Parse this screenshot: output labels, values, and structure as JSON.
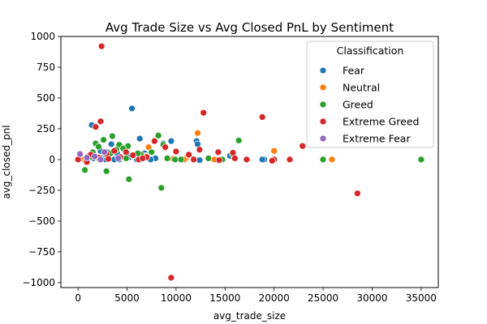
{
  "chart_data": {
    "type": "scatter",
    "title": "Avg Trade Size vs Avg Closed PnL by Sentiment",
    "xlabel": "avg_trade_size",
    "ylabel": "avg_closed_pnl",
    "xlim": [
      -1750,
      36750
    ],
    "ylim": [
      -1040,
      1000
    ],
    "xticks": [
      0,
      5000,
      10000,
      15000,
      20000,
      25000,
      30000,
      35000
    ],
    "xtick_labels": [
      "0",
      "5000",
      "10000",
      "15000",
      "20000",
      "25000",
      "30000",
      "35000"
    ],
    "yticks": [
      -1000,
      -750,
      -500,
      -250,
      0,
      250,
      500,
      750,
      1000
    ],
    "ytick_labels": [
      "−1000",
      "−750",
      "−500",
      "−250",
      "0",
      "250",
      "500",
      "750",
      "1000"
    ],
    "grid": false,
    "legend": {
      "title": "Classification",
      "placement": "top-right"
    },
    "series": [
      {
        "name": "Fear",
        "color": "#1f77b4",
        "points": [
          [
            1400,
            280
          ],
          [
            5500,
            415
          ],
          [
            9500,
            150
          ],
          [
            12100,
            150
          ],
          [
            12200,
            125
          ],
          [
            6300,
            170
          ],
          [
            3400,
            125
          ],
          [
            4700,
            80
          ],
          [
            3000,
            60
          ],
          [
            2600,
            20
          ],
          [
            2800,
            0
          ],
          [
            2300,
            70
          ],
          [
            1100,
            30
          ],
          [
            4200,
            0
          ],
          [
            8700,
            130
          ],
          [
            7900,
            10
          ],
          [
            19000,
            0
          ],
          [
            18800,
            0
          ],
          [
            15500,
            30
          ],
          [
            14800,
            0
          ],
          [
            10500,
            5
          ],
          [
            12400,
            -5
          ],
          [
            6800,
            50
          ],
          [
            7400,
            0
          ],
          [
            4000,
            50
          ],
          [
            5300,
            20
          ],
          [
            1600,
            10
          ],
          [
            3700,
            0
          ],
          [
            9800,
            0
          ],
          [
            6000,
            0
          ]
        ]
      },
      {
        "name": "Neutral",
        "color": "#ff7f0e",
        "points": [
          [
            12200,
            215
          ],
          [
            25900,
            0
          ],
          [
            20000,
            70
          ],
          [
            7200,
            100
          ],
          [
            11000,
            10
          ],
          [
            600,
            0
          ],
          [
            900,
            20
          ],
          [
            2000,
            10
          ],
          [
            4500,
            100
          ],
          [
            10800,
            0
          ],
          [
            9700,
            5
          ],
          [
            1500,
            50
          ],
          [
            6900,
            30
          ],
          [
            800,
            -10
          ],
          [
            13900,
            0
          ]
        ]
      },
      {
        "name": "Greed",
        "color": "#2ca02c",
        "points": [
          [
            35000,
            0
          ],
          [
            25000,
            0
          ],
          [
            16400,
            155
          ],
          [
            5200,
            -160
          ],
          [
            8500,
            -230
          ],
          [
            2900,
            -95
          ],
          [
            700,
            -85
          ],
          [
            3500,
            190
          ],
          [
            2600,
            160
          ],
          [
            1800,
            130
          ],
          [
            2100,
            105
          ],
          [
            4200,
            120
          ],
          [
            5100,
            110
          ],
          [
            8200,
            195
          ],
          [
            8700,
            120
          ],
          [
            1500,
            60
          ],
          [
            3300,
            50
          ],
          [
            4600,
            90
          ],
          [
            6400,
            40
          ],
          [
            7000,
            25
          ],
          [
            9100,
            10
          ],
          [
            10500,
            0
          ],
          [
            11800,
            5
          ],
          [
            13300,
            10
          ],
          [
            14700,
            0
          ],
          [
            15800,
            40
          ],
          [
            2200,
            0
          ],
          [
            3900,
            80
          ],
          [
            5600,
            30
          ],
          [
            7500,
            60
          ],
          [
            1200,
            20
          ],
          [
            2800,
            40
          ],
          [
            4900,
            10
          ],
          [
            6100,
            50
          ],
          [
            9900,
            0
          ]
        ]
      },
      {
        "name": "Extreme Greed",
        "color": "#d62728",
        "points": [
          [
            2400,
            920
          ],
          [
            9500,
            -960
          ],
          [
            2300,
            310
          ],
          [
            1800,
            265
          ],
          [
            12800,
            380
          ],
          [
            18800,
            345
          ],
          [
            28500,
            -275
          ],
          [
            22900,
            110
          ],
          [
            21600,
            0
          ],
          [
            20000,
            0
          ],
          [
            19800,
            -10
          ],
          [
            17200,
            0
          ],
          [
            15800,
            55
          ],
          [
            14300,
            60
          ],
          [
            12400,
            80
          ],
          [
            11300,
            40
          ],
          [
            10000,
            65
          ],
          [
            8900,
            100
          ],
          [
            7800,
            150
          ],
          [
            7000,
            20
          ],
          [
            6200,
            0
          ],
          [
            5600,
            35
          ],
          [
            4900,
            60
          ],
          [
            4300,
            20
          ],
          [
            3700,
            70
          ],
          [
            2900,
            45
          ],
          [
            2100,
            15
          ],
          [
            1300,
            40
          ],
          [
            900,
            -20
          ],
          [
            0,
            0
          ],
          [
            14400,
            -5
          ],
          [
            16000,
            10
          ],
          [
            11800,
            0
          ],
          [
            6600,
            10
          ],
          [
            3100,
            5
          ]
        ]
      },
      {
        "name": "Extreme Fear",
        "color": "#9467bd",
        "points": [
          [
            200,
            45
          ],
          [
            2700,
            60
          ],
          [
            1700,
            25
          ],
          [
            4100,
            10
          ],
          [
            2300,
            0
          ],
          [
            900,
            15
          ]
        ]
      }
    ]
  }
}
